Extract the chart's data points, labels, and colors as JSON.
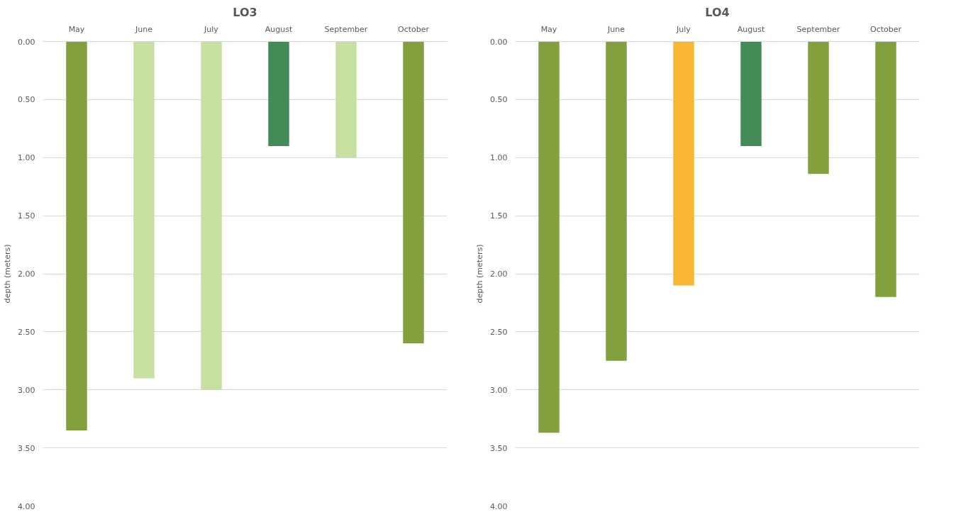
{
  "chart_data": [
    {
      "type": "bar",
      "title": "LO3",
      "ylabel": "depth (meters)",
      "categories": [
        "May",
        "June",
        "July",
        "August",
        "September",
        "October"
      ],
      "values": [
        3.35,
        2.9,
        3.0,
        0.9,
        1.0,
        2.6
      ],
      "colors": [
        "#82a03e",
        "#c5e0a0",
        "#c5e0a0",
        "#438c58",
        "#c5e0a0",
        "#82a03e"
      ],
      "ylim": [
        4.0,
        0.0
      ],
      "yticks": [
        {
          "value": 0,
          "label": "0.00"
        },
        {
          "value": 0.5,
          "label": "0.50"
        },
        {
          "value": 1,
          "label": "1.00"
        },
        {
          "value": 1.5,
          "label": "1.50"
        },
        {
          "value": 2,
          "label": "2.00"
        },
        {
          "value": 2.5,
          "label": "2.50"
        },
        {
          "value": 3,
          "label": "3.00"
        },
        {
          "value": 3.5,
          "label": "3.50"
        },
        {
          "value": 4,
          "label": "4.00"
        }
      ],
      "grid": "y"
    },
    {
      "type": "bar",
      "title": "LO4",
      "ylabel": "depth (meters)",
      "categories": [
        "May",
        "June",
        "July",
        "August",
        "September",
        "October"
      ],
      "values": [
        3.37,
        2.75,
        2.1,
        0.9,
        1.14,
        2.2
      ],
      "colors": [
        "#82a03e",
        "#82a03e",
        "#f9b632",
        "#438c58",
        "#82a03e",
        "#82a03e"
      ],
      "ylim": [
        4.0,
        0.0
      ],
      "yticks": [
        {
          "value": 0,
          "label": "0.00"
        },
        {
          "value": 0.5,
          "label": "0.50"
        },
        {
          "value": 1,
          "label": "1.00"
        },
        {
          "value": 1.5,
          "label": "1.50"
        },
        {
          "value": 2,
          "label": "2.00"
        },
        {
          "value": 2.5,
          "label": "2.50"
        },
        {
          "value": 3,
          "label": "3.00"
        },
        {
          "value": 3.5,
          "label": "3.50"
        },
        {
          "value": 4,
          "label": "4.00"
        }
      ],
      "grid": "y"
    }
  ]
}
